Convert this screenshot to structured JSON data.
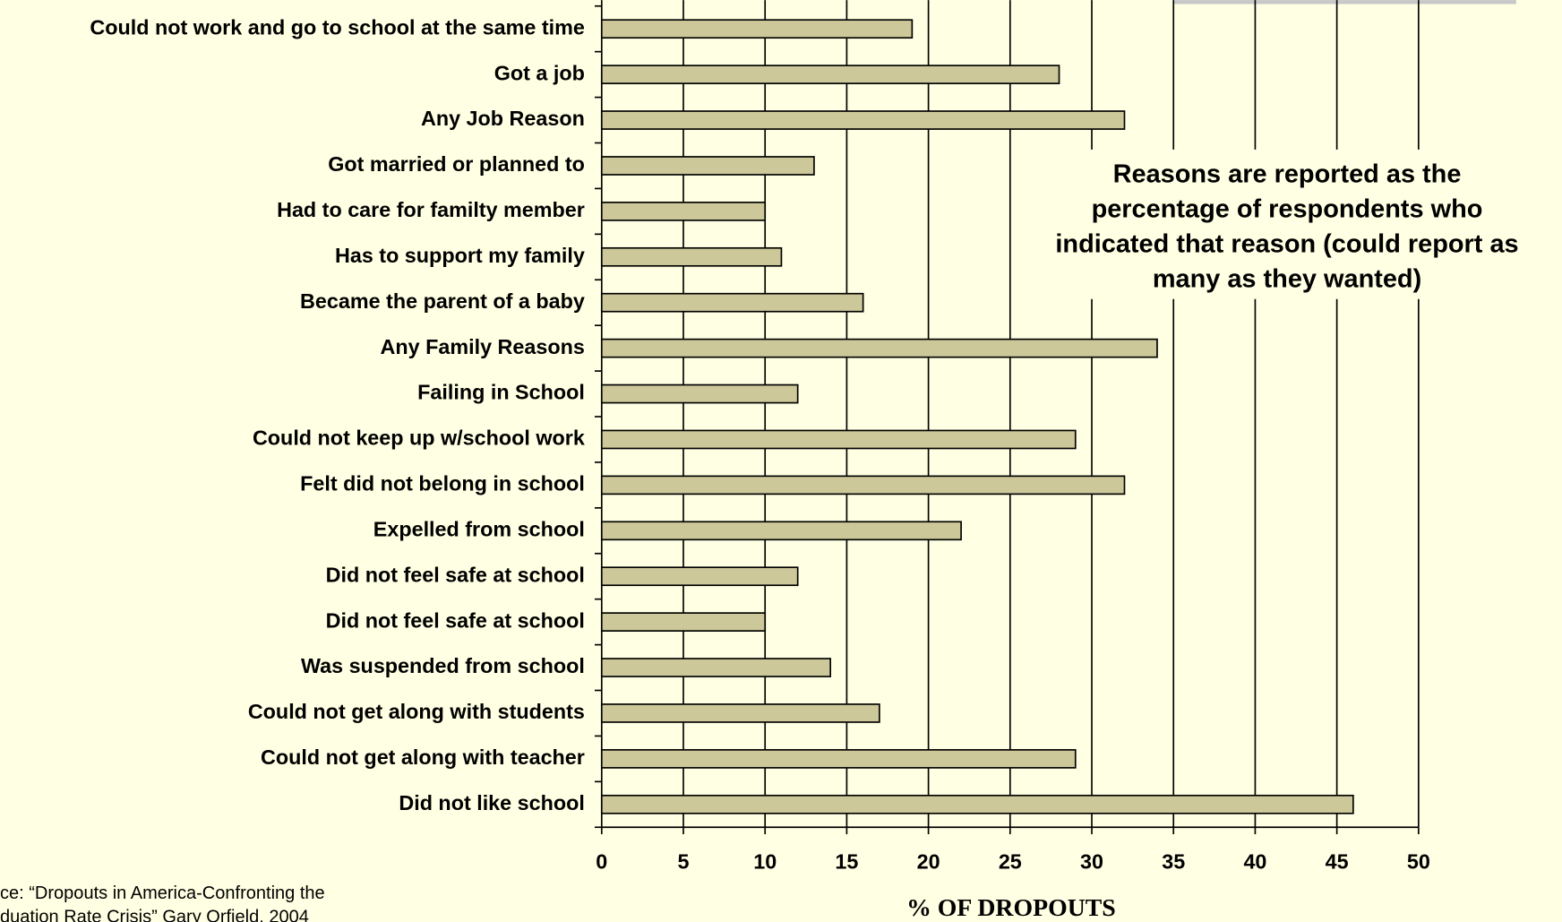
{
  "chart_data": {
    "type": "bar",
    "orientation": "horizontal",
    "categories": [
      "Could not work and go to school at the same time",
      "Got a job",
      "Any Job Reason",
      "Got married or planned to",
      "Had to care for familty member",
      "Has to support my family",
      "Became the parent of a baby",
      "Any Family Reasons",
      "Failing in School",
      "Could not keep up w/school work",
      "Felt did not belong in school",
      "Expelled from school",
      "Did not feel safe at school",
      "Did not feel safe at school",
      "Was suspended from school",
      "Could not get along with students",
      "Could not get along with teacher",
      "Did not like school"
    ],
    "values": [
      19,
      28,
      32,
      13,
      10,
      11,
      16,
      34,
      12,
      29,
      32,
      22,
      12,
      10,
      14,
      17,
      29,
      46
    ],
    "color": "#ccc899",
    "xlim": [
      0,
      50
    ],
    "xticks": [
      0,
      5,
      10,
      15,
      20,
      25,
      30,
      35,
      40,
      45,
      50
    ],
    "grid": true,
    "xlabel": "% OF DROPOUTS",
    "annotation": [
      "Reasons are reported as the",
      "percentage of respondents who",
      "indicated that reason (could report as",
      "many as they wanted)"
    ],
    "source": [
      "ce: “Dropouts in America-Confronting the",
      "duation Rate Crisis” Gary Orfield, 2004"
    ]
  }
}
